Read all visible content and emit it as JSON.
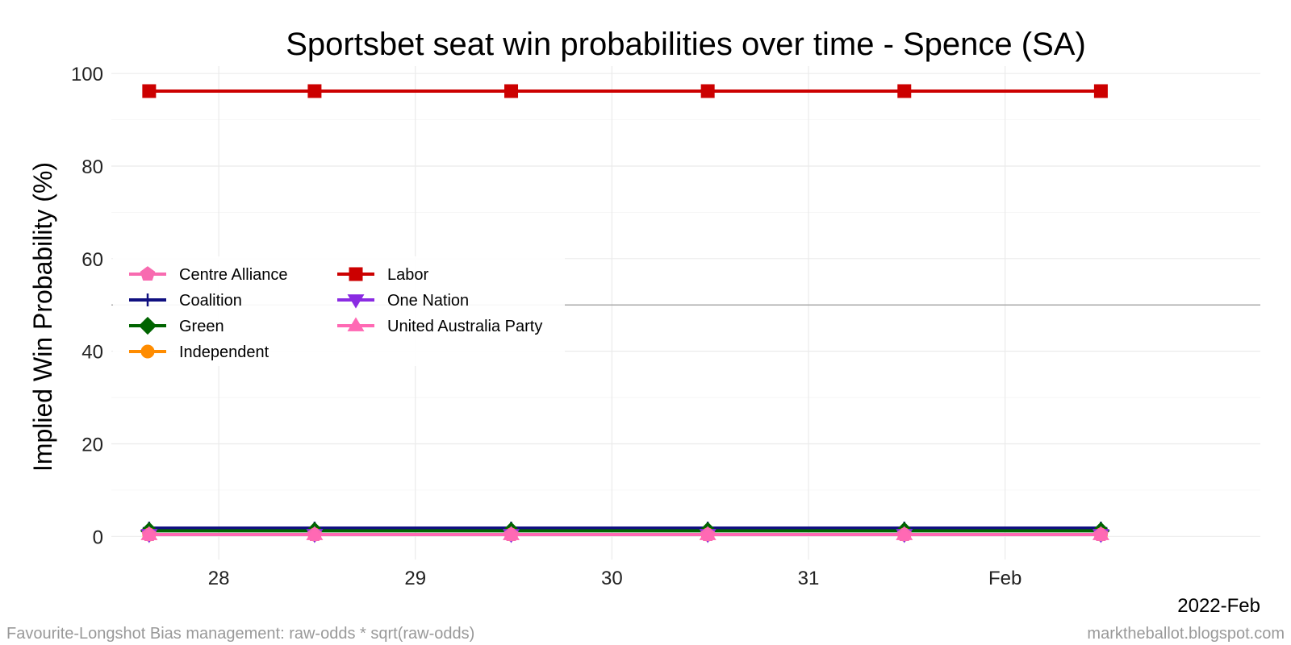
{
  "chart_data": {
    "type": "line",
    "title": "Sportsbet seat win probabilities over time - Spence (SA)",
    "xlabel": "",
    "ylabel": "Implied Win Probability (%)",
    "ylim": [
      -5,
      101.6
    ],
    "yticks": [
      0,
      20,
      40,
      60,
      80,
      100
    ],
    "xlim": [
      "2022-01-27 10:53",
      "2022-02-02 07:10"
    ],
    "xticks": [
      {
        "date": "2022-01-28",
        "label": "28"
      },
      {
        "date": "2022-01-29",
        "label": "29"
      },
      {
        "date": "2022-01-30",
        "label": "30"
      },
      {
        "date": "2022-01-31",
        "label": "31"
      },
      {
        "date": "2022-02-01",
        "label": "Feb"
      }
    ],
    "x_axis_caption": "2022-Feb",
    "reference_line": 50,
    "grid": true,
    "legend": "top-left",
    "x": [
      "2022-01-27 15:30",
      "2022-01-28 11:42",
      "2022-01-29 11:42",
      "2022-01-30 11:42",
      "2022-01-31 11:42",
      "2022-02-01 11:42"
    ],
    "series": [
      {
        "name": "Centre Alliance",
        "color": "#f86bb0",
        "marker": "pentagon",
        "values": [
          0.4,
          0.4,
          0.4,
          0.4,
          0.4,
          0.4
        ]
      },
      {
        "name": "Coalition",
        "color": "#101080",
        "marker": "plus",
        "values": [
          1.8,
          1.8,
          1.8,
          1.8,
          1.8,
          1.8
        ]
      },
      {
        "name": "Green",
        "color": "#006400",
        "marker": "diamond",
        "values": [
          1.2,
          1.2,
          1.2,
          1.2,
          1.2,
          1.2
        ]
      },
      {
        "name": "Independent",
        "color": "#ff8c00",
        "marker": "circle",
        "values": [
          0.4,
          0.4,
          0.4,
          0.4,
          0.4,
          0.4
        ]
      },
      {
        "name": "Labor",
        "color": "#cc0000",
        "marker": "square",
        "values": [
          96.2,
          96.2,
          96.2,
          96.2,
          96.2,
          96.2
        ]
      },
      {
        "name": "One Nation",
        "color": "#8a2be2",
        "marker": "triangle-down",
        "values": [
          0.4,
          0.4,
          0.4,
          0.4,
          0.4,
          0.4
        ]
      },
      {
        "name": "United Australia Party",
        "color": "#ff69b4",
        "marker": "triangle-up",
        "values": [
          0.4,
          0.4,
          0.4,
          0.4,
          0.4,
          0.4
        ]
      }
    ]
  },
  "footer": {
    "left": "Favourite-Longshot Bias management: raw-odds * sqrt(raw-odds)",
    "right": "marktheballot.blogspot.com"
  }
}
